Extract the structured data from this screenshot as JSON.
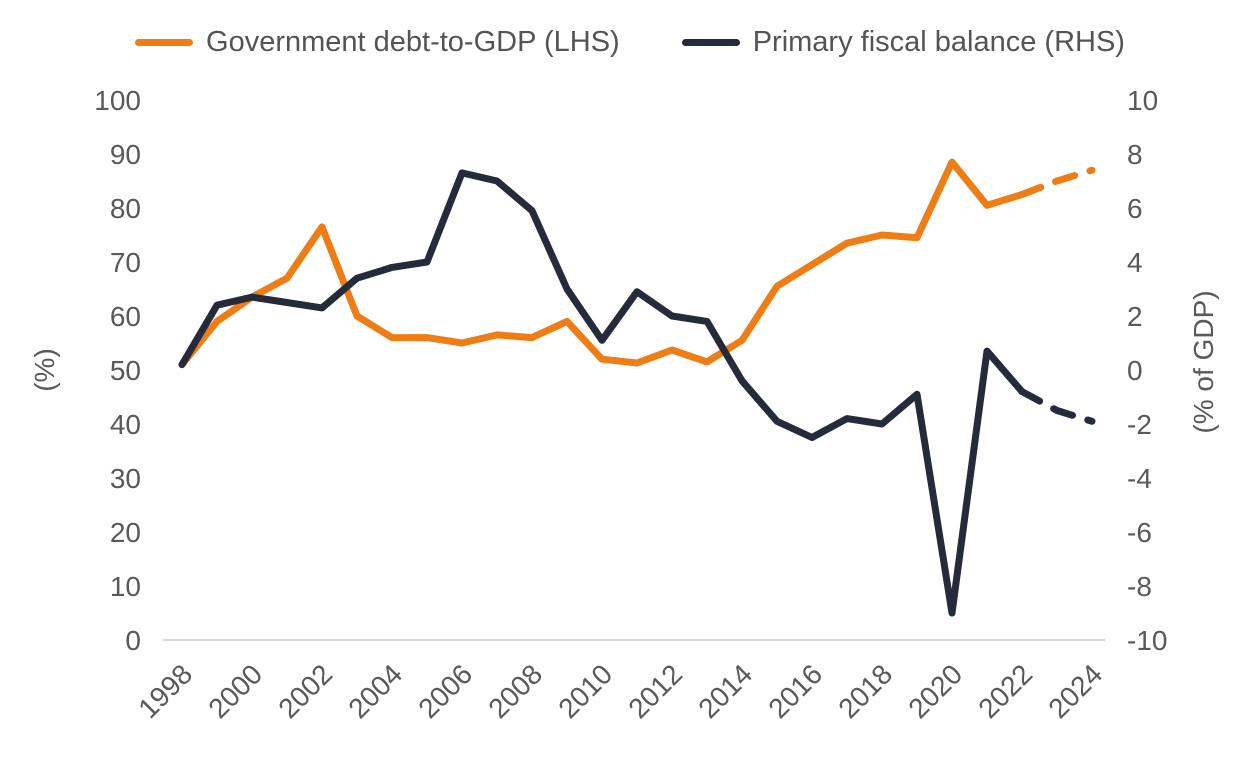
{
  "legend": [
    {
      "label": "Government debt-to-GDP (LHS)",
      "color": "#ED7D14"
    },
    {
      "label": "Primary fiscal balance (RHS)",
      "color": "#262B3B"
    }
  ],
  "colors": {
    "debt_line": "#ED7D14",
    "balance_line": "#262B3B",
    "tick_text": "#595959",
    "axis_line": "#D9D9D9"
  },
  "chart_data": {
    "type": "line",
    "x": [
      1998,
      1999,
      2000,
      2001,
      2002,
      2003,
      2004,
      2005,
      2006,
      2007,
      2008,
      2009,
      2010,
      2011,
      2012,
      2013,
      2014,
      2015,
      2016,
      2017,
      2018,
      2019,
      2020,
      2021,
      2022,
      2023,
      2024
    ],
    "x_tick_labels": [
      "1998",
      "2000",
      "2002",
      "2004",
      "2006",
      "2008",
      "2010",
      "2012",
      "2014",
      "2016",
      "2018",
      "2020",
      "2022",
      "2024"
    ],
    "series": [
      {
        "name": "Government debt-to-GDP (LHS)",
        "axis": "left",
        "color": "#ED7D14",
        "style": "solid_then_dashed",
        "forecast_dashed_from": 2022,
        "values": [
          51,
          59,
          63.5,
          67,
          76.5,
          60,
          56,
          56,
          55,
          56.5,
          56,
          59,
          52,
          51.3,
          53.7,
          51.5,
          55.5,
          65.5,
          69.5,
          73.5,
          75,
          74.5,
          88.5,
          80.5,
          82.5,
          85,
          87
        ]
      },
      {
        "name": "Primary fiscal balance (RHS)",
        "axis": "right",
        "color": "#262B3B",
        "style": "solid_then_dashed",
        "forecast_dashed_from": 2022,
        "values": [
          0.2,
          2.4,
          2.7,
          2.5,
          2.3,
          3.4,
          3.8,
          4.0,
          7.3,
          7.0,
          5.9,
          3.0,
          1.1,
          2.9,
          2.0,
          1.8,
          -0.4,
          -1.9,
          -2.5,
          -1.8,
          -2.0,
          -0.9,
          -9.0,
          0.7,
          -0.8,
          -1.5,
          -1.9
        ]
      }
    ],
    "left_axis": {
      "title": "(%)",
      "min": 0,
      "max": 100,
      "tick_step": 10,
      "ticks": [
        0,
        10,
        20,
        30,
        40,
        50,
        60,
        70,
        80,
        90,
        100
      ]
    },
    "right_axis": {
      "title": "(% of GDP)",
      "min": -10,
      "max": 10,
      "tick_step": 2,
      "ticks": [
        -10,
        -8,
        -6,
        -4,
        -2,
        0,
        2,
        4,
        6,
        8,
        10
      ]
    },
    "grid": false,
    "legend_position": "top"
  }
}
